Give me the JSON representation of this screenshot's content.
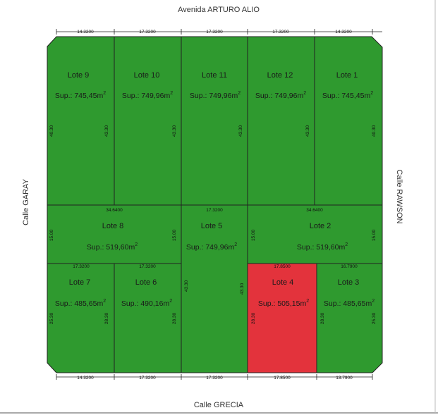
{
  "streets": {
    "top": "Avenida ARTURO ALIO",
    "bottom": "Calle GRECIA",
    "left": "Calle GARAY",
    "right": "Calle RAWSON"
  },
  "colors": {
    "lot_fill": "#2f9a2f",
    "highlight_fill": "#e3333c",
    "line": "#222222"
  },
  "lots": [
    {
      "id": "lote-9",
      "name": "Lote 9",
      "area": "Sup.: 745,45m",
      "sup": "2",
      "highlight": false
    },
    {
      "id": "lote-10",
      "name": "Lote 10",
      "area": "Sup.: 749,96m",
      "sup": "2",
      "highlight": false
    },
    {
      "id": "lote-11",
      "name": "Lote 11",
      "area": "Sup.: 749,96m",
      "sup": "2",
      "highlight": false
    },
    {
      "id": "lote-12",
      "name": "Lote 12",
      "area": "Sup.: 749,96m",
      "sup": "2",
      "highlight": false
    },
    {
      "id": "lote-1",
      "name": "Lote 1",
      "area": "Sup.: 745,45m",
      "sup": "2",
      "highlight": false
    },
    {
      "id": "lote-8",
      "name": "Lote 8",
      "area": "Sup.: 519,60m",
      "sup": "2",
      "highlight": false
    },
    {
      "id": "lote-5",
      "name": "Lote 5",
      "area": "Sup.: 749,96m",
      "sup": "2",
      "highlight": false
    },
    {
      "id": "lote-2",
      "name": "Lote 2",
      "area": "Sup.: 519,60m",
      "sup": "2",
      "highlight": false
    },
    {
      "id": "lote-7",
      "name": "Lote 7",
      "area": "Sup.: 485,65m",
      "sup": "2",
      "highlight": false
    },
    {
      "id": "lote-6",
      "name": "Lote 6",
      "area": "Sup.: 490,16m",
      "sup": "2",
      "highlight": false
    },
    {
      "id": "lote-4",
      "name": "Lote 4",
      "area": "Sup.: 505,15m",
      "sup": "2",
      "highlight": true
    },
    {
      "id": "lote-3",
      "name": "Lote 3",
      "area": "Sup.: 485,65m",
      "sup": "2",
      "highlight": false
    }
  ],
  "dimensions": {
    "top": [
      "14.3200",
      "17.3200",
      "17.3200",
      "17.3200",
      "14.3200"
    ],
    "bottom": [
      "14.3200",
      "17.3200",
      "17.3200",
      "17.8500",
      "13.7900"
    ],
    "mid_upper": [
      "34.6400",
      "17.3200",
      "34.6400"
    ],
    "mid_lower": [
      "17.3200",
      "17.3200",
      "17.8500",
      "16.7900"
    ],
    "v_top_row": [
      "40.30",
      "43.30",
      "43.30",
      "43.30",
      "43.30",
      "40.30"
    ],
    "v_mid_row": [
      "15.00",
      "15.00",
      "15.00",
      "15.00"
    ],
    "v_lote5": [
      "43.30",
      "43.30"
    ],
    "v_bottom_row": [
      "25.30",
      "28.30",
      "28.30",
      "28.30",
      "28.30",
      "25.30"
    ]
  }
}
